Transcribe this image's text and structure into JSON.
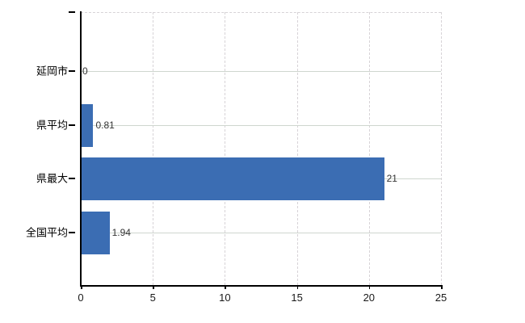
{
  "chart_data": {
    "type": "bar",
    "orientation": "horizontal",
    "title": "",
    "categories": [
      "延岡市",
      "県平均",
      "県最大",
      "全国平均"
    ],
    "values": [
      0,
      0.81,
      21,
      1.94
    ],
    "value_labels": [
      "0",
      "0.81",
      "21",
      "1.94"
    ],
    "x_ticks": [
      0,
      5,
      10,
      15,
      20,
      25
    ],
    "x_tick_labels": [
      "0",
      "5",
      "10",
      "15",
      "20",
      "25"
    ],
    "xlim": [
      0,
      25
    ],
    "grid": true,
    "legend": "none",
    "colors": {
      "bar": "#3b6db3",
      "axis": "#000000",
      "grid_horizontal": "#cfd6cf",
      "grid_vertical": "#d7d3d7",
      "plot_border_dashed": "#d7d3d7",
      "category_label": "#000000",
      "value_label": "#333333",
      "x_tick_label": "#1a1a1a",
      "background": "#ffffff"
    }
  }
}
